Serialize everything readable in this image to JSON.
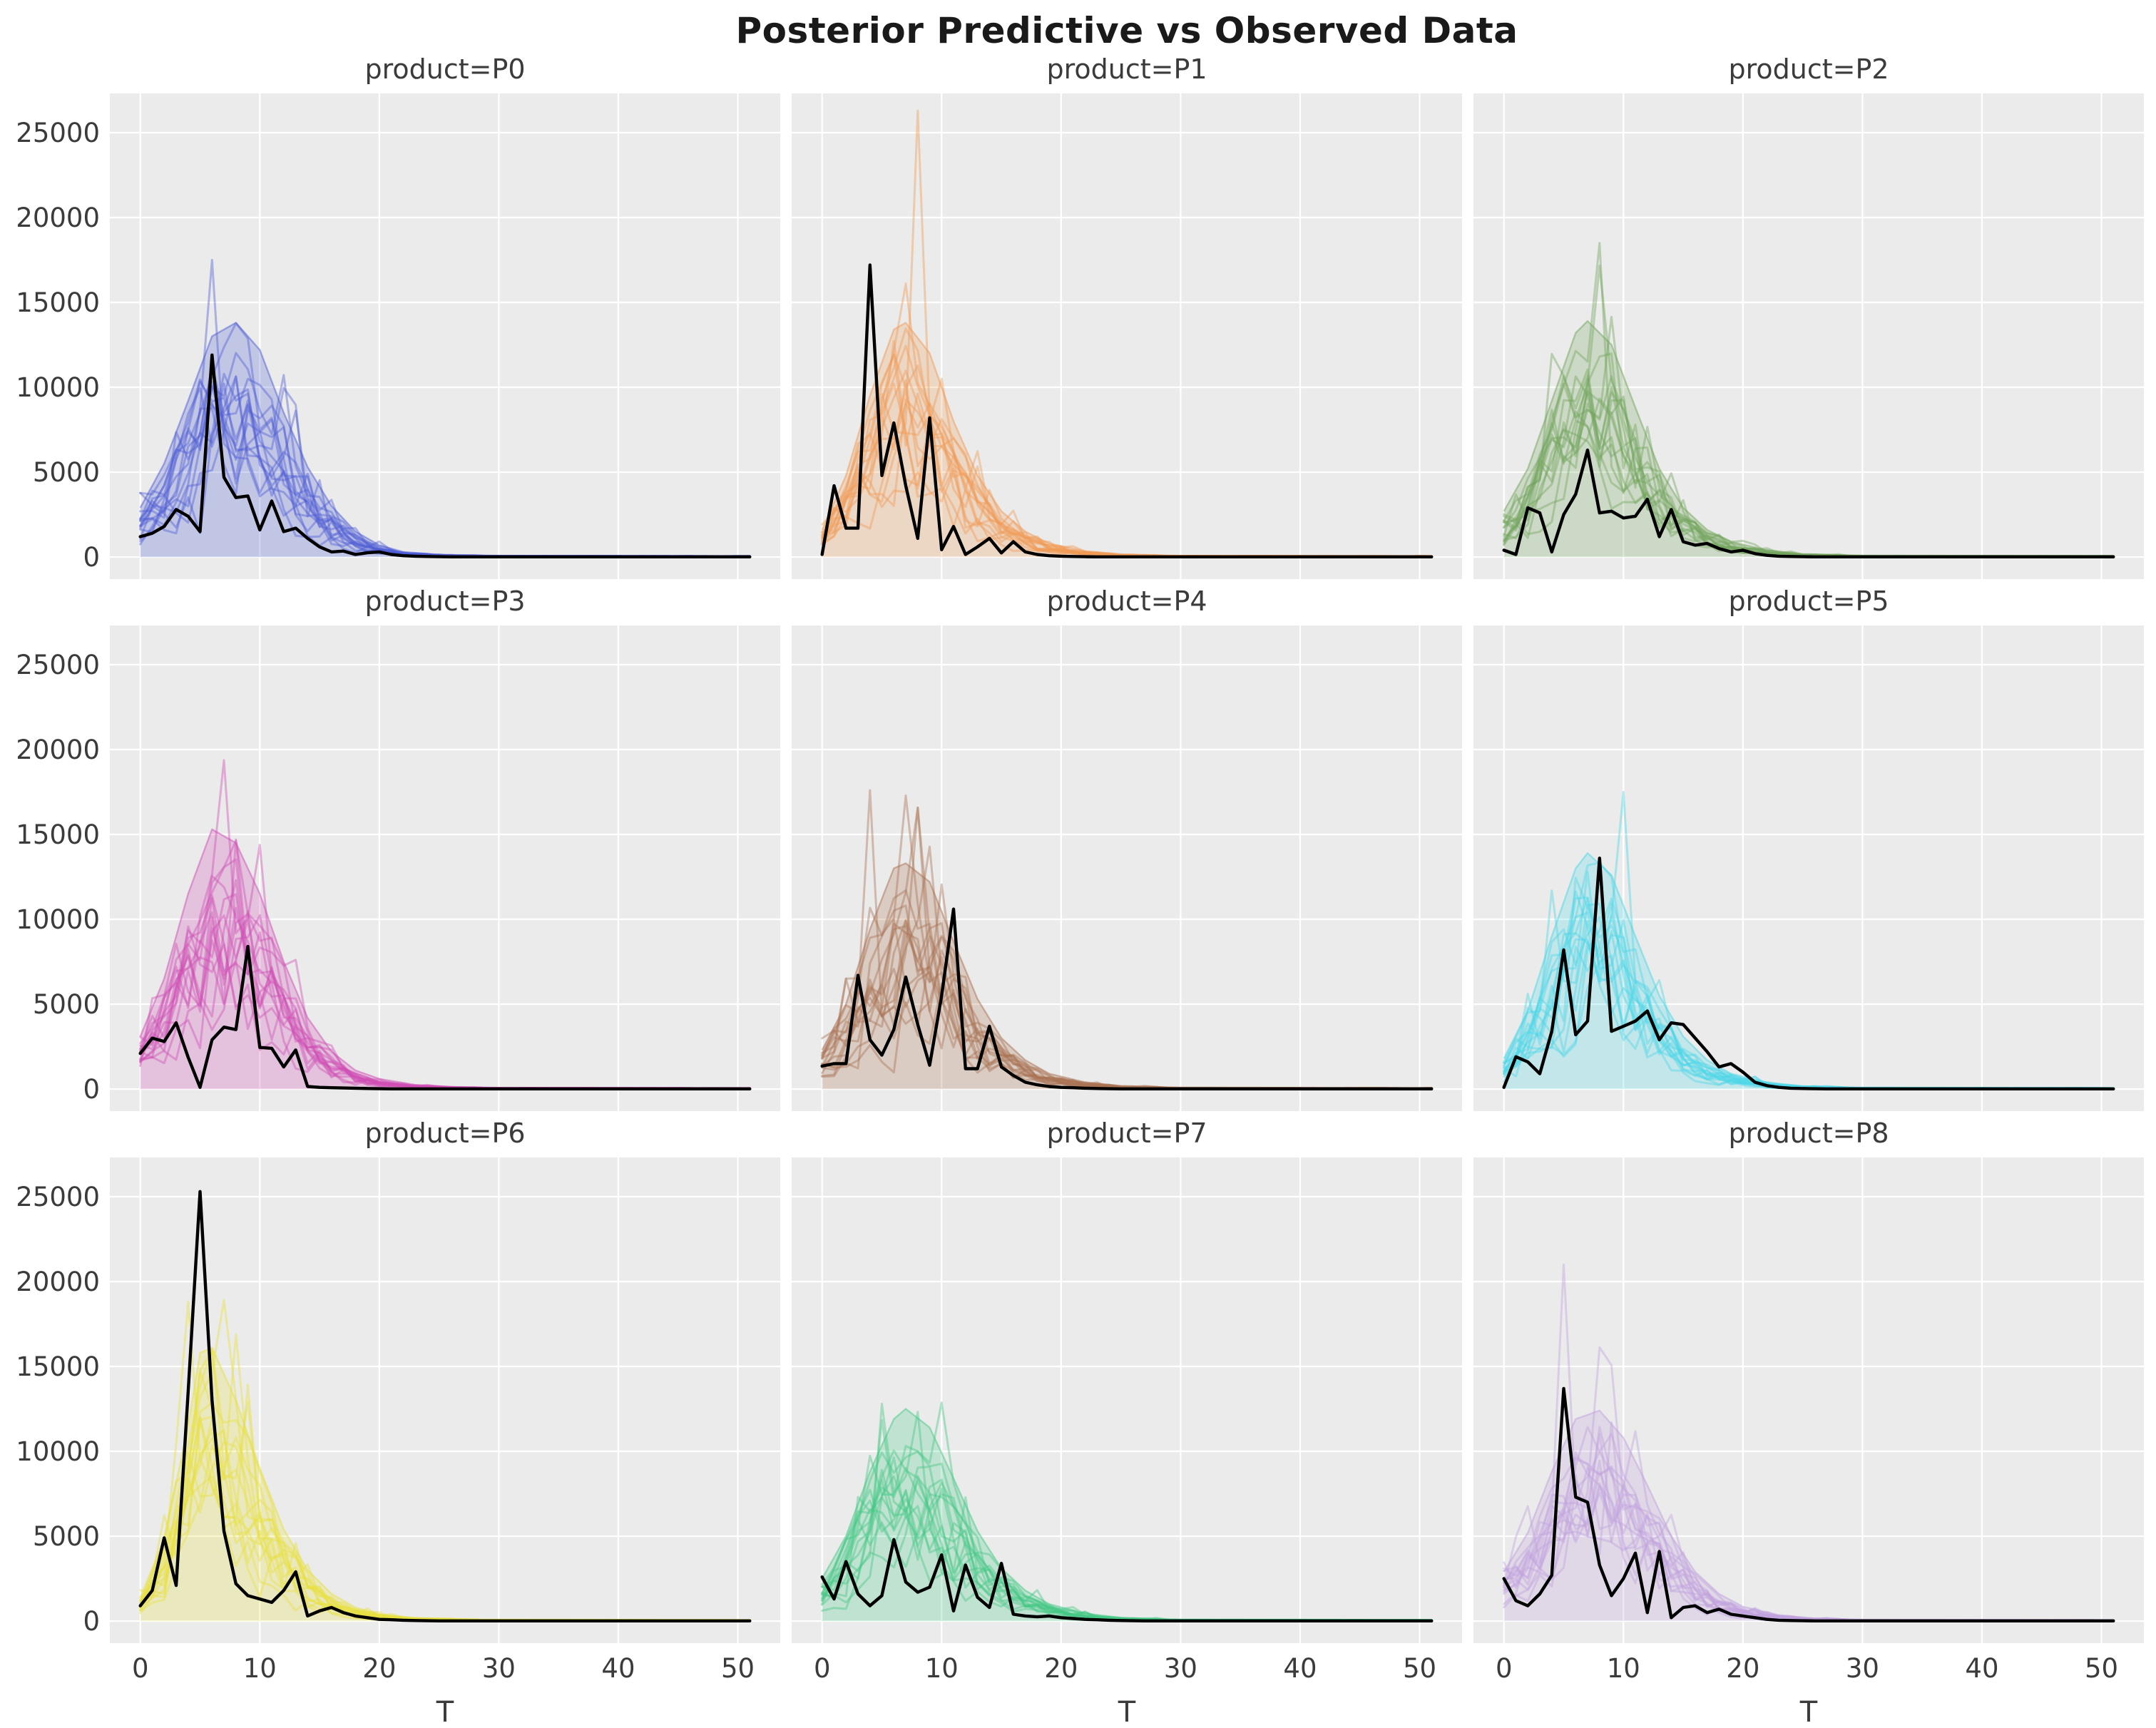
{
  "title": "Posterior Predictive vs Observed Data",
  "chart_data": {
    "type": "line",
    "title": "Posterior Predictive vs Observed Data",
    "xlabel": "T",
    "ylabel": "",
    "x_ticks": [
      0,
      10,
      20,
      30,
      40,
      50
    ],
    "y_ticks": [
      0,
      5000,
      10000,
      15000,
      20000,
      25000
    ],
    "xlim": [
      -2.55,
      53.55
    ],
    "ylim": [
      -1300,
      27310
    ],
    "n_points": 52,
    "pad_value": 10,
    "grid": true,
    "legend": "none",
    "facet_rows": 3,
    "facet_cols": 3,
    "panels": [
      {
        "product": "P0",
        "label": "product=P0",
        "color": "#4e5dd4",
        "seed": 11,
        "n_samples": 16,
        "observed": [
          1200,
          1400,
          1800,
          2800,
          2400,
          1500,
          11900,
          4700,
          3500,
          3600,
          1600,
          3300,
          1500,
          1700,
          1100,
          600,
          300,
          350,
          150,
          250,
          300,
          150,
          80,
          50,
          30,
          20,
          10
        ],
        "envelope_upper": [
          [
            0,
            2900
          ],
          [
            2,
            5500
          ],
          [
            4,
            9200
          ],
          [
            6,
            13000
          ],
          [
            8,
            13800
          ],
          [
            10,
            12200
          ],
          [
            12,
            8500
          ],
          [
            14,
            5300
          ],
          [
            16,
            3000
          ],
          [
            18,
            1500
          ],
          [
            20,
            700
          ],
          [
            22,
            300
          ],
          [
            25,
            140
          ],
          [
            30,
            80
          ],
          [
            51,
            60
          ]
        ],
        "sample_spike": {
          "t": 6,
          "v": 17500
        }
      },
      {
        "product": "P1",
        "label": "product=P1",
        "color": "#f09a55",
        "seed": 22,
        "n_samples": 16,
        "observed": [
          150,
          4200,
          1700,
          1700,
          17200,
          4800,
          7900,
          4200,
          1100,
          8200,
          430,
          1800,
          150,
          600,
          1100,
          240,
          900,
          300,
          150,
          80,
          50,
          30,
          20,
          10
        ],
        "envelope_upper": [
          [
            0,
            1600
          ],
          [
            2,
            4800
          ],
          [
            4,
            9500
          ],
          [
            6,
            13400
          ],
          [
            7,
            13800
          ],
          [
            9,
            12000
          ],
          [
            11,
            8000
          ],
          [
            13,
            4800
          ],
          [
            15,
            2700
          ],
          [
            17,
            1500
          ],
          [
            19,
            800
          ],
          [
            22,
            350
          ],
          [
            25,
            160
          ],
          [
            30,
            80
          ],
          [
            51,
            60
          ]
        ],
        "sample_spike": {
          "t": 8,
          "v": 26300
        }
      },
      {
        "product": "P2",
        "label": "product=P2",
        "color": "#73a55c",
        "seed": 33,
        "n_samples": 16,
        "observed": [
          400,
          150,
          2900,
          2600,
          300,
          2500,
          3700,
          6300,
          2600,
          2700,
          2300,
          2400,
          3400,
          1200,
          2800,
          900,
          700,
          800,
          500,
          300,
          400,
          200,
          100,
          50,
          30,
          20,
          10
        ],
        "envelope_upper": [
          [
            0,
            2700
          ],
          [
            2,
            5200
          ],
          [
            4,
            9200
          ],
          [
            6,
            13200
          ],
          [
            7,
            13900
          ],
          [
            9,
            12500
          ],
          [
            11,
            8800
          ],
          [
            13,
            5200
          ],
          [
            15,
            2900
          ],
          [
            17,
            1600
          ],
          [
            19,
            900
          ],
          [
            22,
            400
          ],
          [
            25,
            180
          ],
          [
            30,
            90
          ],
          [
            51,
            60
          ]
        ],
        "sample_spike": {
          "t": 8,
          "v": 18500
        }
      },
      {
        "product": "P3",
        "label": "product=P3",
        "color": "#cf4fb6",
        "seed": 44,
        "n_samples": 16,
        "observed": [
          2100,
          3000,
          2800,
          3900,
          1870,
          100,
          2900,
          3650,
          3500,
          8400,
          2450,
          2400,
          1300,
          2300,
          150,
          100,
          80,
          60,
          50,
          30,
          20,
          10
        ],
        "envelope_upper": [
          [
            0,
            3100
          ],
          [
            2,
            6500
          ],
          [
            4,
            11500
          ],
          [
            6,
            15300
          ],
          [
            8,
            14500
          ],
          [
            10,
            11500
          ],
          [
            12,
            7500
          ],
          [
            14,
            4200
          ],
          [
            16,
            2200
          ],
          [
            18,
            1100
          ],
          [
            20,
            600
          ],
          [
            23,
            250
          ],
          [
            26,
            130
          ],
          [
            30,
            80
          ],
          [
            51,
            60
          ]
        ],
        "sample_spike": {
          "t": 8,
          "v": 14700
        }
      },
      {
        "product": "P4",
        "label": "product=P4",
        "color": "#a97253",
        "seed": 55,
        "n_samples": 16,
        "observed": [
          1350,
          1500,
          1500,
          6700,
          2900,
          2000,
          3500,
          6600,
          3800,
          1400,
          5500,
          10600,
          1200,
          1200,
          3700,
          1300,
          800,
          400,
          250,
          150,
          100,
          80,
          50,
          30,
          20,
          10
        ],
        "envelope_upper": [
          [
            0,
            2300
          ],
          [
            2,
            5000
          ],
          [
            4,
            9400
          ],
          [
            6,
            13000
          ],
          [
            7,
            13300
          ],
          [
            9,
            12200
          ],
          [
            11,
            8700
          ],
          [
            13,
            5300
          ],
          [
            15,
            3000
          ],
          [
            17,
            1700
          ],
          [
            19,
            900
          ],
          [
            22,
            400
          ],
          [
            25,
            180
          ],
          [
            30,
            90
          ],
          [
            51,
            60
          ]
        ],
        "sample_spike": {
          "t": 4,
          "v": 17600
        }
      },
      {
        "product": "P5",
        "label": "product=P5",
        "color": "#4cd7e6",
        "seed": 66,
        "n_samples": 16,
        "observed": [
          100,
          1900,
          1600,
          900,
          3400,
          8200,
          3200,
          4000,
          13600,
          3400,
          3700,
          4000,
          4600,
          2900,
          3900,
          3800,
          3000,
          2200,
          1300,
          1500,
          1000,
          400,
          200,
          100,
          50,
          30,
          20,
          10
        ],
        "envelope_upper": [
          [
            0,
            1800
          ],
          [
            2,
            4600
          ],
          [
            4,
            9000
          ],
          [
            6,
            13000
          ],
          [
            7,
            13900
          ],
          [
            9,
            12600
          ],
          [
            11,
            9000
          ],
          [
            13,
            5500
          ],
          [
            15,
            3100
          ],
          [
            17,
            1700
          ],
          [
            19,
            900
          ],
          [
            22,
            400
          ],
          [
            25,
            170
          ],
          [
            30,
            90
          ],
          [
            51,
            60
          ]
        ],
        "sample_spike": {
          "t": 10,
          "v": 17500
        }
      },
      {
        "product": "P6",
        "label": "product=P6",
        "color": "#e6e13e",
        "seed": 77,
        "n_samples": 16,
        "observed": [
          900,
          1800,
          4900,
          2100,
          13500,
          25300,
          13000,
          5300,
          2200,
          1500,
          1300,
          1100,
          1800,
          2900,
          300,
          600,
          800,
          500,
          300,
          200,
          100,
          80,
          50,
          30,
          20,
          10
        ],
        "envelope_upper": [
          [
            0,
            1400
          ],
          [
            2,
            4800
          ],
          [
            4,
            11500
          ],
          [
            5,
            15800
          ],
          [
            6,
            16100
          ],
          [
            8,
            13000
          ],
          [
            10,
            9000
          ],
          [
            12,
            5400
          ],
          [
            14,
            3000
          ],
          [
            16,
            1600
          ],
          [
            18,
            800
          ],
          [
            20,
            400
          ],
          [
            23,
            180
          ],
          [
            28,
            90
          ],
          [
            51,
            60
          ]
        ],
        "sample_spike": {
          "t": 4,
          "v": 18800
        }
      },
      {
        "product": "P7",
        "label": "product=P7",
        "color": "#46c985",
        "seed": 88,
        "n_samples": 16,
        "observed": [
          2600,
          1300,
          3500,
          1600,
          900,
          1500,
          4800,
          2300,
          1700,
          2000,
          3900,
          600,
          3300,
          1400,
          800,
          3400,
          400,
          300,
          250,
          300,
          200,
          150,
          100,
          80,
          50,
          30,
          20,
          10
        ],
        "envelope_upper": [
          [
            0,
            2500
          ],
          [
            2,
            5000
          ],
          [
            4,
            8800
          ],
          [
            6,
            11900
          ],
          [
            7,
            12500
          ],
          [
            9,
            11400
          ],
          [
            11,
            8400
          ],
          [
            13,
            5300
          ],
          [
            15,
            3100
          ],
          [
            17,
            1800
          ],
          [
            19,
            1000
          ],
          [
            22,
            450
          ],
          [
            25,
            200
          ],
          [
            30,
            100
          ],
          [
            51,
            70
          ]
        ],
        "sample_spike": {
          "t": 5,
          "v": 12800
        }
      },
      {
        "product": "P8",
        "label": "product=P8",
        "color": "#c0a2dd",
        "seed": 99,
        "n_samples": 16,
        "observed": [
          2500,
          1200,
          900,
          1600,
          2700,
          13700,
          7300,
          7000,
          3300,
          1500,
          2500,
          4000,
          500,
          4100,
          200,
          800,
          900,
          500,
          700,
          400,
          300,
          200,
          100,
          50,
          30,
          20,
          10
        ],
        "envelope_upper": [
          [
            0,
            2900
          ],
          [
            2,
            5200
          ],
          [
            4,
            8800
          ],
          [
            6,
            11900
          ],
          [
            8,
            12400
          ],
          [
            10,
            10800
          ],
          [
            12,
            8000
          ],
          [
            14,
            5000
          ],
          [
            16,
            2900
          ],
          [
            18,
            1600
          ],
          [
            20,
            850
          ],
          [
            23,
            350
          ],
          [
            26,
            160
          ],
          [
            30,
            90
          ],
          [
            51,
            60
          ]
        ],
        "sample_spike": {
          "t": 5,
          "v": 21000
        }
      }
    ]
  },
  "style": {
    "panel_bg": "#ebebeb",
    "grid_color": "#ffffff",
    "observed_color": "#000000",
    "tick_color": "#3b3b3b",
    "title_color": "#1a1a1a",
    "fig_bg": "#ffffff",
    "fill_alpha": 0.26,
    "sample_alpha": 0.42,
    "envelope_edge_alpha": 0.5
  }
}
